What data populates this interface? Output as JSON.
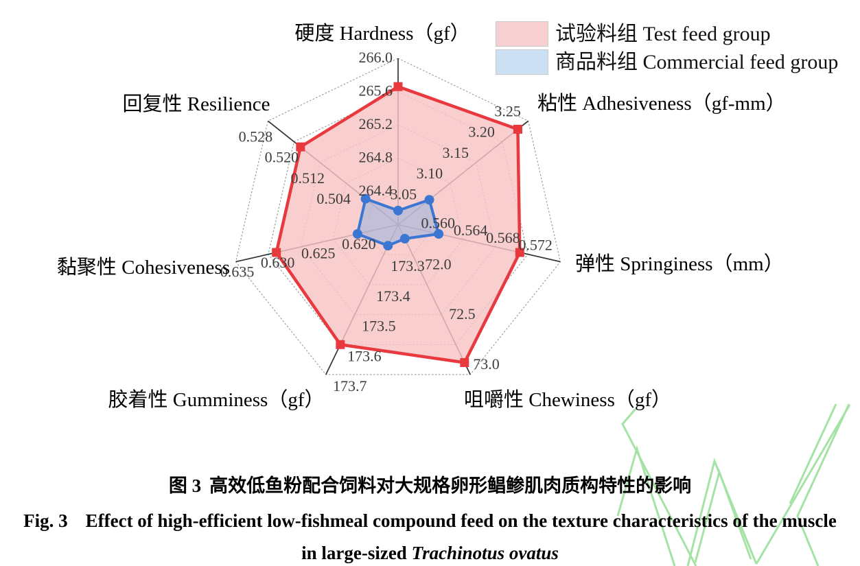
{
  "legend": {
    "items": [
      {
        "label": "试验料组 Test feed group",
        "swatch_color": "#f7cfd0"
      },
      {
        "label": "商品料组 Commercial feed group",
        "swatch_color": "#cce0f4"
      }
    ]
  },
  "caption": {
    "zh_label": "图 3",
    "zh_text": "高效低鱼粉配合饲料对大规格卵形鲳鲹肌肉质构特性的影响",
    "en_label": "Fig. 3",
    "en_text": "Effect of high-efficient low-fishmeal compound feed on the texture characteristics of the muscle",
    "line3_prefix": "in large-sized",
    "line3_species": "Trachinotus ovatus"
  },
  "decor": {
    "watermark_color": "#8fdc8f"
  },
  "chart_data": {
    "type": "radar",
    "rings": 5,
    "grid_color": "#969696",
    "spoke_color": "#333333",
    "axes": [
      {
        "label": "硬度 Hardness（gf）",
        "min": 264.0,
        "max": 266.0,
        "ticks": [
          "264.4",
          "264.8",
          "265.2",
          "265.6",
          "266.0"
        ]
      },
      {
        "label": "粘性 Adhesiveness（gf-mm）",
        "min": 3.0,
        "max": 3.25,
        "ticks": [
          "3.05",
          "3.10",
          "3.15",
          "3.20",
          "3.25"
        ]
      },
      {
        "label": "弹性 Springiness（mm）",
        "min": 0.556,
        "max": 0.576,
        "ticks": [
          "0.560",
          "0.564",
          "0.568",
          "0.572"
        ]
      },
      {
        "label": "咀嚼性 Chewiness（gf）",
        "min": 71.5,
        "max": 73.0,
        "ticks": [
          "72.0",
          "72.5",
          "73.0"
        ]
      },
      {
        "label": "胶着性 Gumminess（gf）",
        "min": 173.2,
        "max": 173.7,
        "ticks": [
          "173.3",
          "173.4",
          "173.5",
          "173.6",
          "173.7"
        ]
      },
      {
        "label": "黏聚性 Cohesiveness",
        "min": 0.615,
        "max": 0.635,
        "ticks": [
          "0.620",
          "0.625",
          "0.630",
          "0.635"
        ]
      },
      {
        "label": "回复性 Resilience",
        "min": 0.488,
        "max": 0.528,
        "ticks": [
          "0.504",
          "0.512",
          "0.520",
          "0.528"
        ]
      }
    ],
    "series": [
      {
        "name": "试验料组 Test feed group",
        "color": "#e8393f",
        "fill": "rgba(246,195,197,0.82)",
        "marker": "square",
        "stroke_width": 4.5,
        "values": [
          265.66,
          3.23,
          0.571,
          72.88,
          173.6,
          0.63,
          0.518
        ]
      },
      {
        "name": "商品料组 Commercial feed group",
        "color": "#3b76d2",
        "fill": "rgba(150,178,220,0.55)",
        "marker": "circle",
        "stroke_width": 4,
        "values": [
          264.17,
          3.06,
          0.561,
          71.64,
          173.27,
          0.62,
          0.498
        ]
      }
    ]
  }
}
